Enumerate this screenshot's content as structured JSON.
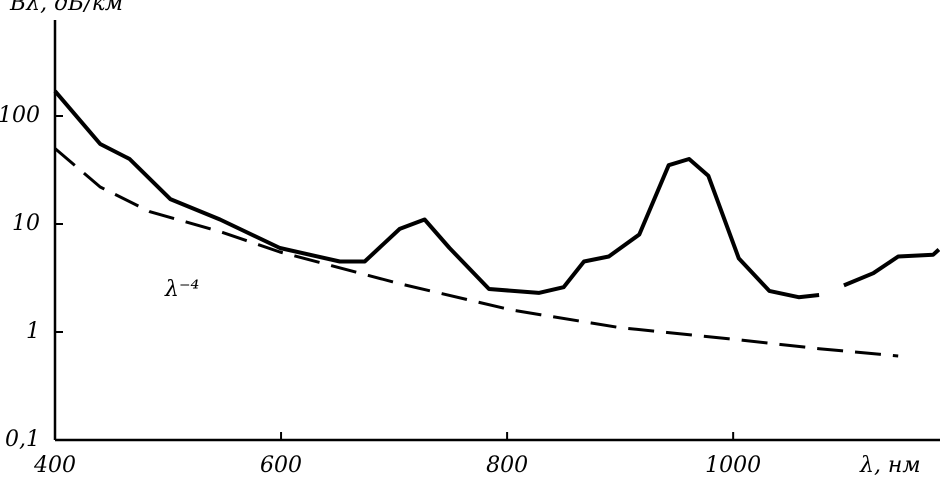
{
  "chart_data": {
    "type": "line",
    "y_label": "Bλ, дБ/км",
    "x_label": "λ, нм",
    "annotation": "λ⁻⁴",
    "log_y": true,
    "xlim": [
      400,
      1183
    ],
    "ylim": [
      0.1,
      1000
    ],
    "xticks": [
      400,
      600,
      800,
      1000
    ],
    "yticks": [
      {
        "value": 0.1,
        "label": "0,1"
      },
      1,
      10,
      100
    ],
    "series": [
      {
        "color": "#000000",
        "dash": false,
        "x": [
          400,
          440,
          466,
          502,
          546,
          599,
          652,
          674,
          705,
          727,
          749,
          784,
          828,
          850,
          868,
          890,
          917,
          943,
          961,
          978,
          1005,
          1032,
          1058,
          1076,
          1087,
          1098,
          1124,
          1146,
          1177,
          1182
        ],
        "values": [
          170,
          55,
          40,
          17,
          11,
          6,
          4.5,
          4.5,
          9,
          11,
          6,
          2.5,
          2.3,
          2.6,
          4.5,
          5,
          8,
          35,
          40,
          28,
          4.8,
          2.4,
          2.1,
          2.2,
          null,
          2.7,
          3.5,
          5,
          5.2,
          5.8
        ]
      },
      {
        "color": "#000000",
        "dash": true,
        "x": [
          400,
          440,
          484,
          546,
          599,
          705,
          804,
          899,
          1003,
          1076,
          1146
        ],
        "values": [
          50,
          22,
          13,
          8.5,
          5.5,
          2.8,
          1.6,
          1.1,
          0.85,
          0.7,
          0.6
        ]
      }
    ]
  }
}
